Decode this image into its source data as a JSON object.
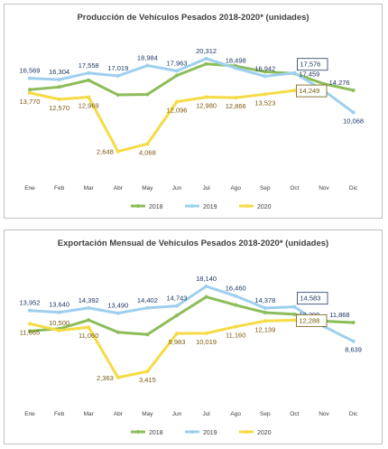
{
  "chart_data": [
    {
      "type": "line",
      "title": "Producción de Vehículos Pesados 2018-2020* (unidades)",
      "categories": [
        "Ene",
        "Feb",
        "Mar",
        "Abr",
        "May",
        "Jun",
        "Jul",
        "Ago",
        "Sep",
        "Oct",
        "Nov",
        "Dic"
      ],
      "ylim": [
        0,
        22000
      ],
      "grid": false,
      "legend_position": "bottom",
      "series": [
        {
          "name": "2018",
          "color": "#8cbd5a",
          "values": [
            14400,
            14900,
            16200,
            13400,
            13500,
            17100,
            19300,
            18900,
            17800,
            17459,
            15500,
            14276
          ]
        },
        {
          "name": "2019",
          "color": "#9ed0ee",
          "values": [
            16569,
            16304,
            17558,
            17019,
            18984,
            17963,
            20312,
            18498,
            16942,
            17576,
            14200,
            10068
          ]
        },
        {
          "name": "2020",
          "color": "#f5db45",
          "values": [
            13770,
            12570,
            12969,
            2648,
            4068,
            12096,
            12980,
            12866,
            13523,
            14249,
            null,
            null
          ]
        }
      ],
      "data_labels": [
        {
          "text": "16,569",
          "series": 1,
          "index": 0,
          "pos": "above",
          "boxed": false
        },
        {
          "text": "16,304",
          "series": 1,
          "index": 1,
          "pos": "above",
          "boxed": false
        },
        {
          "text": "17,558",
          "series": 1,
          "index": 2,
          "pos": "above",
          "boxed": false
        },
        {
          "text": "17,019",
          "series": 1,
          "index": 3,
          "pos": "above",
          "boxed": false
        },
        {
          "text": "18,984",
          "series": 1,
          "index": 4,
          "pos": "above",
          "boxed": false
        },
        {
          "text": "17,963",
          "series": 1,
          "index": 5,
          "pos": "above",
          "boxed": false
        },
        {
          "text": "20,312",
          "series": 1,
          "index": 6,
          "pos": "above",
          "boxed": false
        },
        {
          "text": "18,498",
          "series": 1,
          "index": 7,
          "pos": "above",
          "boxed": false
        },
        {
          "text": "16,942",
          "series": 1,
          "index": 8,
          "pos": "above",
          "boxed": false
        },
        {
          "text": "17,576",
          "series": 1,
          "index": 9,
          "pos": "above-right",
          "boxed": true
        },
        {
          "text": "10,068",
          "series": 1,
          "index": 11,
          "pos": "below",
          "boxed": false
        },
        {
          "text": "17,459",
          "series": 0,
          "index": 9,
          "pos": "right",
          "boxed": false
        },
        {
          "text": "14,276",
          "series": 0,
          "index": 11,
          "pos": "above-left",
          "boxed": false
        },
        {
          "text": "13,770",
          "series": 2,
          "index": 0,
          "pos": "below",
          "boxed": false
        },
        {
          "text": "12,570",
          "series": 2,
          "index": 1,
          "pos": "below",
          "boxed": false
        },
        {
          "text": "12,969",
          "series": 2,
          "index": 2,
          "pos": "below",
          "boxed": false
        },
        {
          "text": "2,648",
          "series": 2,
          "index": 3,
          "pos": "left",
          "boxed": false
        },
        {
          "text": "4,068",
          "series": 2,
          "index": 4,
          "pos": "below",
          "boxed": false
        },
        {
          "text": "12,096",
          "series": 2,
          "index": 5,
          "pos": "below",
          "boxed": false
        },
        {
          "text": "12,980",
          "series": 2,
          "index": 6,
          "pos": "below",
          "boxed": false
        },
        {
          "text": "12,866",
          "series": 2,
          "index": 7,
          "pos": "below",
          "boxed": false
        },
        {
          "text": "13,523",
          "series": 2,
          "index": 8,
          "pos": "below",
          "boxed": false
        },
        {
          "text": "14,249",
          "series": 2,
          "index": 9,
          "pos": "right",
          "boxed": true
        }
      ]
    },
    {
      "type": "line",
      "title": "Exportación Mensual de Vehículos Pesados 2018-2020* (unidades)",
      "categories": [
        "Ene",
        "Feb",
        "Mar",
        "Abr",
        "May",
        "Jun",
        "Jul",
        "Ago",
        "Sep",
        "Oct",
        "Nov",
        "Dic"
      ],
      "ylim": [
        0,
        20000
      ],
      "grid": false,
      "legend_position": "bottom",
      "series": [
        {
          "name": "2018",
          "color": "#8cbd5a",
          "values": [
            10400,
            10800,
            12300,
            10200,
            9800,
            13100,
            16300,
            14900,
            13600,
            13299,
            12100,
            11868
          ]
        },
        {
          "name": "2019",
          "color": "#9ed0ee",
          "values": [
            13952,
            13640,
            14392,
            13490,
            14402,
            14743,
            18140,
            16460,
            14378,
            14583,
            11200,
            8639
          ]
        },
        {
          "name": "2020",
          "color": "#f5db45",
          "values": [
            11665,
            10500,
            11060,
            2363,
            3415,
            9983,
            10019,
            11160,
            12139,
            12288,
            null,
            null
          ]
        }
      ],
      "data_labels": [
        {
          "text": "13,952",
          "series": 1,
          "index": 0,
          "pos": "above",
          "boxed": false
        },
        {
          "text": "13,640",
          "series": 1,
          "index": 1,
          "pos": "above",
          "boxed": false
        },
        {
          "text": "14,392",
          "series": 1,
          "index": 2,
          "pos": "above",
          "boxed": false
        },
        {
          "text": "13,490",
          "series": 1,
          "index": 3,
          "pos": "above",
          "boxed": false
        },
        {
          "text": "14,402",
          "series": 1,
          "index": 4,
          "pos": "above",
          "boxed": false
        },
        {
          "text": "14,743",
          "series": 1,
          "index": 5,
          "pos": "above",
          "boxed": false
        },
        {
          "text": "18,140",
          "series": 1,
          "index": 6,
          "pos": "above",
          "boxed": false
        },
        {
          "text": "16,460",
          "series": 1,
          "index": 7,
          "pos": "above",
          "boxed": false
        },
        {
          "text": "14,378",
          "series": 1,
          "index": 8,
          "pos": "above",
          "boxed": false
        },
        {
          "text": "14,583",
          "series": 1,
          "index": 9,
          "pos": "above-right",
          "boxed": true
        },
        {
          "text": "8,639",
          "series": 1,
          "index": 11,
          "pos": "below",
          "boxed": false
        },
        {
          "text": "13,299",
          "series": 0,
          "index": 9,
          "pos": "right",
          "boxed": false
        },
        {
          "text": "11,868",
          "series": 0,
          "index": 11,
          "pos": "above-left",
          "boxed": false
        },
        {
          "text": "11,665",
          "series": 2,
          "index": 0,
          "pos": "below",
          "boxed": false
        },
        {
          "text": "10,500",
          "series": 2,
          "index": 1,
          "pos": "above",
          "boxed": false
        },
        {
          "text": "11,060",
          "series": 2,
          "index": 2,
          "pos": "below",
          "boxed": false
        },
        {
          "text": "2,363",
          "series": 2,
          "index": 3,
          "pos": "left",
          "boxed": false
        },
        {
          "text": "3,415",
          "series": 2,
          "index": 4,
          "pos": "below",
          "boxed": false
        },
        {
          "text": "9,983",
          "series": 2,
          "index": 5,
          "pos": "below",
          "boxed": false
        },
        {
          "text": "10,019",
          "series": 2,
          "index": 6,
          "pos": "below",
          "boxed": false
        },
        {
          "text": "11,160",
          "series": 2,
          "index": 7,
          "pos": "below",
          "boxed": false
        },
        {
          "text": "12,139",
          "series": 2,
          "index": 8,
          "pos": "below",
          "boxed": false
        },
        {
          "text": "12,288",
          "series": 2,
          "index": 9,
          "pos": "right",
          "boxed": true
        }
      ]
    }
  ]
}
